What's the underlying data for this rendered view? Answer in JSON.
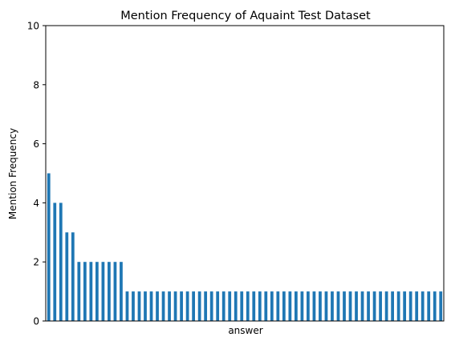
{
  "chart_data": {
    "type": "bar",
    "title": "Mention Frequency of Aquaint Test Dataset",
    "xlabel": "answer",
    "ylabel": "Mention Frequency",
    "ylim": [
      0,
      10
    ],
    "yticks": [
      "0",
      "2",
      "4",
      "6",
      "8",
      "10"
    ],
    "grid": false,
    "legend": "none",
    "bar_color": "#1f77b4",
    "values": [
      5,
      4,
      4,
      3,
      3,
      2,
      2,
      2,
      2,
      2,
      2,
      2,
      2,
      1,
      1,
      1,
      1,
      1,
      1,
      1,
      1,
      1,
      1,
      1,
      1,
      1,
      1,
      1,
      1,
      1,
      1,
      1,
      1,
      1,
      1,
      1,
      1,
      1,
      1,
      1,
      1,
      1,
      1,
      1,
      1,
      1,
      1,
      1,
      1,
      1,
      1,
      1,
      1,
      1,
      1,
      1,
      1,
      1,
      1,
      1,
      1,
      1,
      1,
      1,
      1,
      1
    ]
  }
}
